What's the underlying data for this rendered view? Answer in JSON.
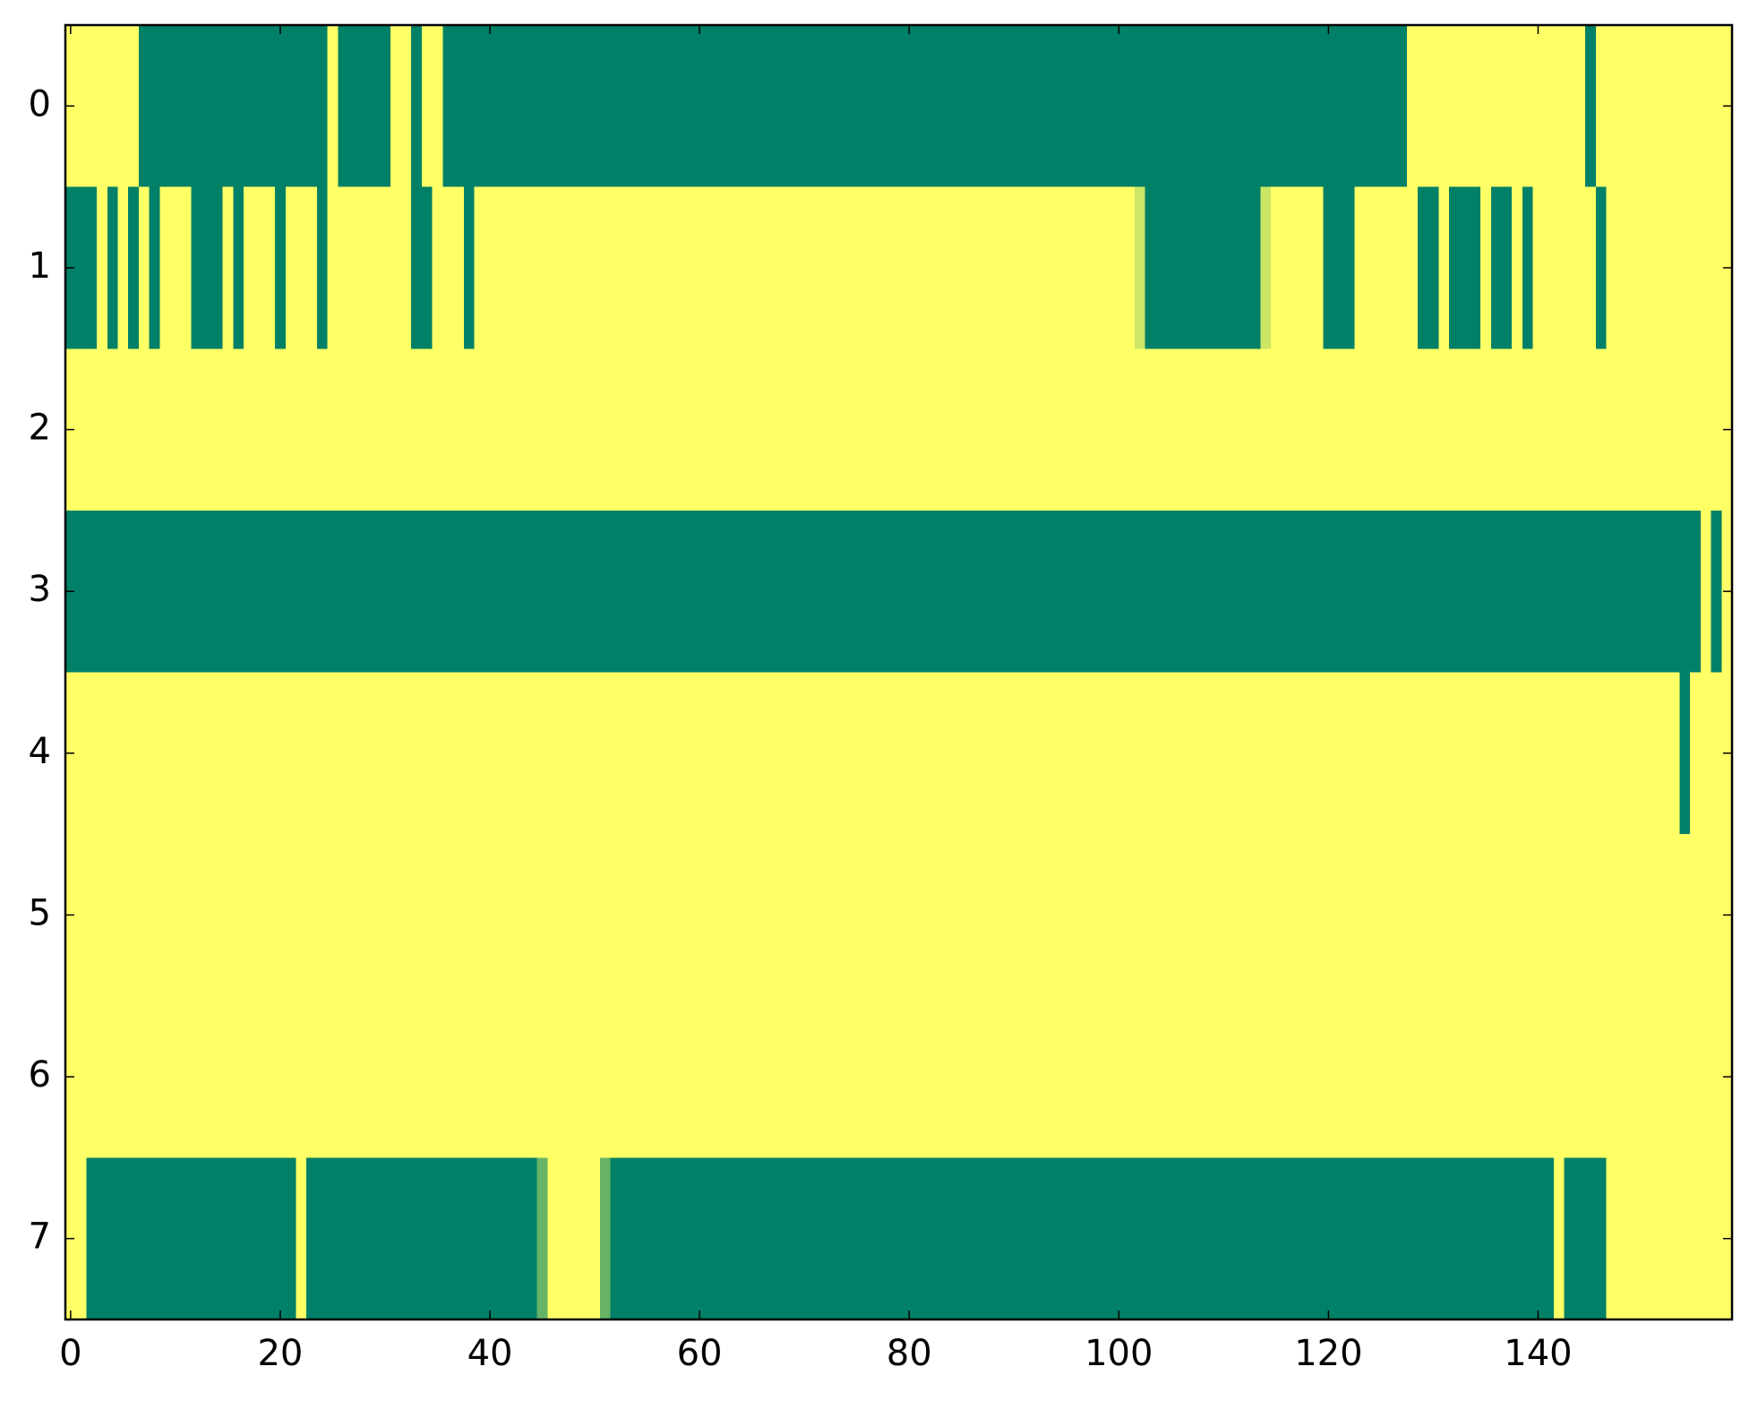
{
  "chart_data": {
    "type": "heatmap",
    "colormap": "summer",
    "xlim": [
      -0.5,
      158.5
    ],
    "ylim": [
      7.5,
      -0.5
    ],
    "xticks": [
      0,
      20,
      40,
      60,
      80,
      100,
      120,
      140
    ],
    "yticks": [
      0,
      1,
      2,
      3,
      4,
      5,
      6,
      7
    ],
    "z": [
      [
        1,
        1,
        1,
        1,
        1,
        1,
        1,
        0,
        0,
        0,
        0,
        0,
        0,
        0,
        0,
        0,
        0,
        0,
        0,
        0,
        0,
        0,
        0,
        0,
        0,
        1,
        0,
        0,
        0,
        0,
        0,
        1,
        1,
        0,
        1,
        1,
        0,
        0,
        0,
        0,
        0,
        0,
        0,
        0,
        0,
        0,
        0,
        0,
        0,
        0,
        0,
        0,
        0,
        0,
        0,
        0,
        0,
        0,
        0,
        0,
        0,
        0,
        0,
        0,
        0,
        0,
        0,
        0,
        0,
        0,
        0,
        0,
        0,
        0,
        0,
        0,
        0,
        0,
        0,
        0,
        0,
        0,
        0,
        0,
        0,
        0,
        0,
        0,
        0,
        0,
        0,
        0,
        0,
        0,
        0,
        0,
        0,
        0,
        0,
        0,
        0,
        0,
        0,
        0,
        0,
        0,
        0,
        0,
        0,
        0,
        0,
        0,
        0,
        0,
        0,
        0,
        0,
        0,
        0,
        0,
        0,
        0,
        0,
        0,
        0,
        0,
        0,
        0,
        1,
        1,
        1,
        1,
        1,
        1,
        1,
        1,
        1,
        1,
        1,
        1,
        1,
        1,
        1,
        1,
        1,
        0,
        1,
        1,
        1,
        1,
        1,
        1,
        1,
        1,
        1,
        1,
        1,
        1,
        1
      ],
      [
        0,
        0,
        0,
        1,
        0,
        1,
        0,
        1,
        0,
        1,
        1,
        1,
        0,
        0,
        0,
        1,
        0,
        1,
        1,
        1,
        0,
        1,
        1,
        1,
        0,
        1,
        1,
        1,
        1,
        1,
        1,
        1,
        1,
        0,
        0,
        1,
        1,
        1,
        0,
        1,
        1,
        1,
        1,
        1,
        1,
        1,
        1,
        1,
        1,
        1,
        1,
        1,
        1,
        1,
        1,
        1,
        1,
        1,
        1,
        1,
        1,
        1,
        1,
        1,
        1,
        1,
        1,
        1,
        1,
        1,
        1,
        1,
        1,
        1,
        1,
        1,
        1,
        1,
        1,
        1,
        1,
        1,
        1,
        1,
        1,
        1,
        1,
        1,
        1,
        1,
        1,
        1,
        1,
        1,
        1,
        1,
        1,
        1,
        1,
        1,
        1,
        1,
        0.8,
        0,
        0,
        0,
        0,
        0,
        0,
        0,
        0,
        0,
        0,
        0,
        0.8,
        1,
        1,
        1,
        1,
        1,
        0,
        0,
        0,
        1,
        1,
        1,
        1,
        1,
        1,
        0,
        0,
        1,
        0,
        0,
        0,
        1,
        0,
        0,
        1,
        0,
        1,
        1,
        1,
        1,
        1,
        1,
        0,
        1,
        1,
        1,
        1,
        1,
        1,
        1,
        1,
        1,
        1,
        1,
        1
      ],
      [
        1,
        1,
        1,
        1,
        1,
        1,
        1,
        1,
        1,
        1,
        1,
        1,
        1,
        1,
        1,
        1,
        1,
        1,
        1,
        1,
        1,
        1,
        1,
        1,
        1,
        1,
        1,
        1,
        1,
        1,
        1,
        1,
        1,
        1,
        1,
        1,
        1,
        1,
        1,
        1,
        1,
        1,
        1,
        1,
        1,
        1,
        1,
        1,
        1,
        1,
        1,
        1,
        1,
        1,
        1,
        1,
        1,
        1,
        1,
        1,
        1,
        1,
        1,
        1,
        1,
        1,
        1,
        1,
        1,
        1,
        1,
        1,
        1,
        1,
        1,
        1,
        1,
        1,
        1,
        1,
        1,
        1,
        1,
        1,
        1,
        1,
        1,
        1,
        1,
        1,
        1,
        1,
        1,
        1,
        1,
        1,
        1,
        1,
        1,
        1,
        1,
        1,
        1,
        1,
        1,
        1,
        1,
        1,
        1,
        1,
        1,
        1,
        1,
        1,
        1,
        1,
        1,
        1,
        1,
        1,
        1,
        1,
        1,
        1,
        1,
        1,
        1,
        1,
        1,
        1,
        1,
        1,
        1,
        1,
        1,
        1,
        1,
        1,
        1,
        1,
        1,
        1,
        1,
        1,
        1,
        1,
        1,
        1,
        1,
        1,
        1,
        1,
        1,
        1,
        1,
        1,
        1,
        1,
        1
      ],
      [
        0,
        0,
        0,
        0,
        0,
        0,
        0,
        0,
        0,
        0,
        0,
        0,
        0,
        0,
        0,
        0,
        0,
        0,
        0,
        0,
        0,
        0,
        0,
        0,
        0,
        0,
        0,
        0,
        0,
        0,
        0,
        0,
        0,
        0,
        0,
        0,
        0,
        0,
        0,
        0,
        0,
        0,
        0,
        0,
        0,
        0,
        0,
        0,
        0,
        0,
        0,
        0,
        0,
        0,
        0,
        0,
        0,
        0,
        0,
        0,
        0,
        0,
        0,
        0,
        0,
        0,
        0,
        0,
        0,
        0,
        0,
        0,
        0,
        0,
        0,
        0,
        0,
        0,
        0,
        0,
        0,
        0,
        0,
        0,
        0,
        0,
        0,
        0,
        0,
        0,
        0,
        0,
        0,
        0,
        0,
        0,
        0,
        0,
        0,
        0,
        0,
        0,
        0,
        0,
        0,
        0,
        0,
        0,
        0,
        0,
        0,
        0,
        0,
        0,
        0,
        0,
        0,
        0,
        0,
        0,
        0,
        0,
        0,
        0,
        0,
        0,
        0,
        0,
        0,
        0,
        0,
        0,
        0,
        0,
        0,
        0,
        0,
        0,
        0,
        0,
        0,
        0,
        0,
        0,
        0,
        0,
        0,
        0,
        0,
        0,
        0,
        0,
        0,
        0,
        0,
        0,
        1,
        0,
        1
      ],
      [
        1,
        1,
        1,
        1,
        1,
        1,
        1,
        1,
        1,
        1,
        1,
        1,
        1,
        1,
        1,
        1,
        1,
        1,
        1,
        1,
        1,
        1,
        1,
        1,
        1,
        1,
        1,
        1,
        1,
        1,
        1,
        1,
        1,
        1,
        1,
        1,
        1,
        1,
        1,
        1,
        1,
        1,
        1,
        1,
        1,
        1,
        1,
        1,
        1,
        1,
        1,
        1,
        1,
        1,
        1,
        1,
        1,
        1,
        1,
        1,
        1,
        1,
        1,
        1,
        1,
        1,
        1,
        1,
        1,
        1,
        1,
        1,
        1,
        1,
        1,
        1,
        1,
        1,
        1,
        1,
        1,
        1,
        1,
        1,
        1,
        1,
        1,
        1,
        1,
        1,
        1,
        1,
        1,
        1,
        1,
        1,
        1,
        1,
        1,
        1,
        1,
        1,
        1,
        1,
        1,
        1,
        1,
        1,
        1,
        1,
        1,
        1,
        1,
        1,
        1,
        1,
        1,
        1,
        1,
        1,
        1,
        1,
        1,
        1,
        1,
        1,
        1,
        1,
        1,
        1,
        1,
        1,
        1,
        1,
        1,
        1,
        1,
        1,
        1,
        1,
        1,
        1,
        1,
        1,
        1,
        1,
        1,
        1,
        1,
        1,
        1,
        1,
        1,
        1,
        0,
        1,
        1,
        1,
        1
      ],
      [
        1,
        1,
        1,
        1,
        1,
        1,
        1,
        1,
        1,
        1,
        1,
        1,
        1,
        1,
        1,
        1,
        1,
        1,
        1,
        1,
        1,
        1,
        1,
        1,
        1,
        1,
        1,
        1,
        1,
        1,
        1,
        1,
        1,
        1,
        1,
        1,
        1,
        1,
        1,
        1,
        1,
        1,
        1,
        1,
        1,
        1,
        1,
        1,
        1,
        1,
        1,
        1,
        1,
        1,
        1,
        1,
        1,
        1,
        1,
        1,
        1,
        1,
        1,
        1,
        1,
        1,
        1,
        1,
        1,
        1,
        1,
        1,
        1,
        1,
        1,
        1,
        1,
        1,
        1,
        1,
        1,
        1,
        1,
        1,
        1,
        1,
        1,
        1,
        1,
        1,
        1,
        1,
        1,
        1,
        1,
        1,
        1,
        1,
        1,
        1,
        1,
        1,
        1,
        1,
        1,
        1,
        1,
        1,
        1,
        1,
        1,
        1,
        1,
        1,
        1,
        1,
        1,
        1,
        1,
        1,
        1,
        1,
        1,
        1,
        1,
        1,
        1,
        1,
        1,
        1,
        1,
        1,
        1,
        1,
        1,
        1,
        1,
        1,
        1,
        1,
        1,
        1,
        1,
        1,
        1,
        1,
        1,
        1,
        1,
        1,
        1,
        1,
        1,
        1,
        1,
        1,
        1,
        1,
        1
      ],
      [
        1,
        1,
        1,
        1,
        1,
        1,
        1,
        1,
        1,
        1,
        1,
        1,
        1,
        1,
        1,
        1,
        1,
        1,
        1,
        1,
        1,
        1,
        1,
        1,
        1,
        1,
        1,
        1,
        1,
        1,
        1,
        1,
        1,
        1,
        1,
        1,
        1,
        1,
        1,
        1,
        1,
        1,
        1,
        1,
        1,
        1,
        1,
        1,
        1,
        1,
        1,
        1,
        1,
        1,
        1,
        1,
        1,
        1,
        1,
        1,
        1,
        1,
        1,
        1,
        1,
        1,
        1,
        1,
        1,
        1,
        1,
        1,
        1,
        1,
        1,
        1,
        1,
        1,
        1,
        1,
        1,
        1,
        1,
        1,
        1,
        1,
        1,
        1,
        1,
        1,
        1,
        1,
        1,
        1,
        1,
        1,
        1,
        1,
        1,
        1,
        1,
        1,
        1,
        1,
        1,
        1,
        1,
        1,
        1,
        1,
        1,
        1,
        1,
        1,
        1,
        1,
        1,
        1,
        1,
        1,
        1,
        1,
        1,
        1,
        1,
        1,
        1,
        1,
        1,
        1,
        1,
        1,
        1,
        1,
        1,
        1,
        1,
        1,
        1,
        1,
        1,
        1,
        1,
        1,
        1,
        1,
        1,
        1,
        1,
        1,
        1,
        1,
        1,
        1,
        1,
        1,
        1,
        1,
        1
      ],
      [
        1,
        1,
        0,
        0,
        0,
        0,
        0,
        0,
        0,
        0,
        0,
        0,
        0,
        0,
        0,
        0,
        0,
        0,
        0,
        0,
        0,
        0,
        1,
        0,
        0,
        0,
        0,
        0,
        0,
        0,
        0,
        0,
        0,
        0,
        0,
        0,
        0,
        0,
        0,
        0,
        0,
        0,
        0,
        0,
        0,
        0.4,
        1,
        1,
        1,
        1,
        1,
        0.4,
        0,
        0,
        0,
        0,
        0,
        0,
        0,
        0,
        0,
        0,
        0,
        0,
        0,
        0,
        0,
        0,
        0,
        0,
        0,
        0,
        0,
        0,
        0,
        0,
        0,
        0,
        0,
        0,
        0,
        0,
        0,
        0,
        0,
        0,
        0,
        0,
        0,
        0,
        0,
        0,
        0,
        0,
        0,
        0,
        0,
        0,
        0,
        0,
        0,
        0,
        0,
        0,
        0,
        0,
        0,
        0,
        0,
        0,
        0,
        0,
        0,
        0,
        0,
        0,
        0,
        0,
        0,
        0,
        0,
        0,
        0,
        0,
        0,
        0,
        0,
        0,
        0,
        0,
        0,
        0,
        0,
        0,
        0,
        0,
        0,
        0,
        0,
        0,
        0,
        0,
        1,
        0,
        0,
        0,
        0,
        1,
        1,
        1,
        1,
        1,
        1,
        1,
        1,
        1,
        1,
        1,
        1
      ]
    ]
  }
}
